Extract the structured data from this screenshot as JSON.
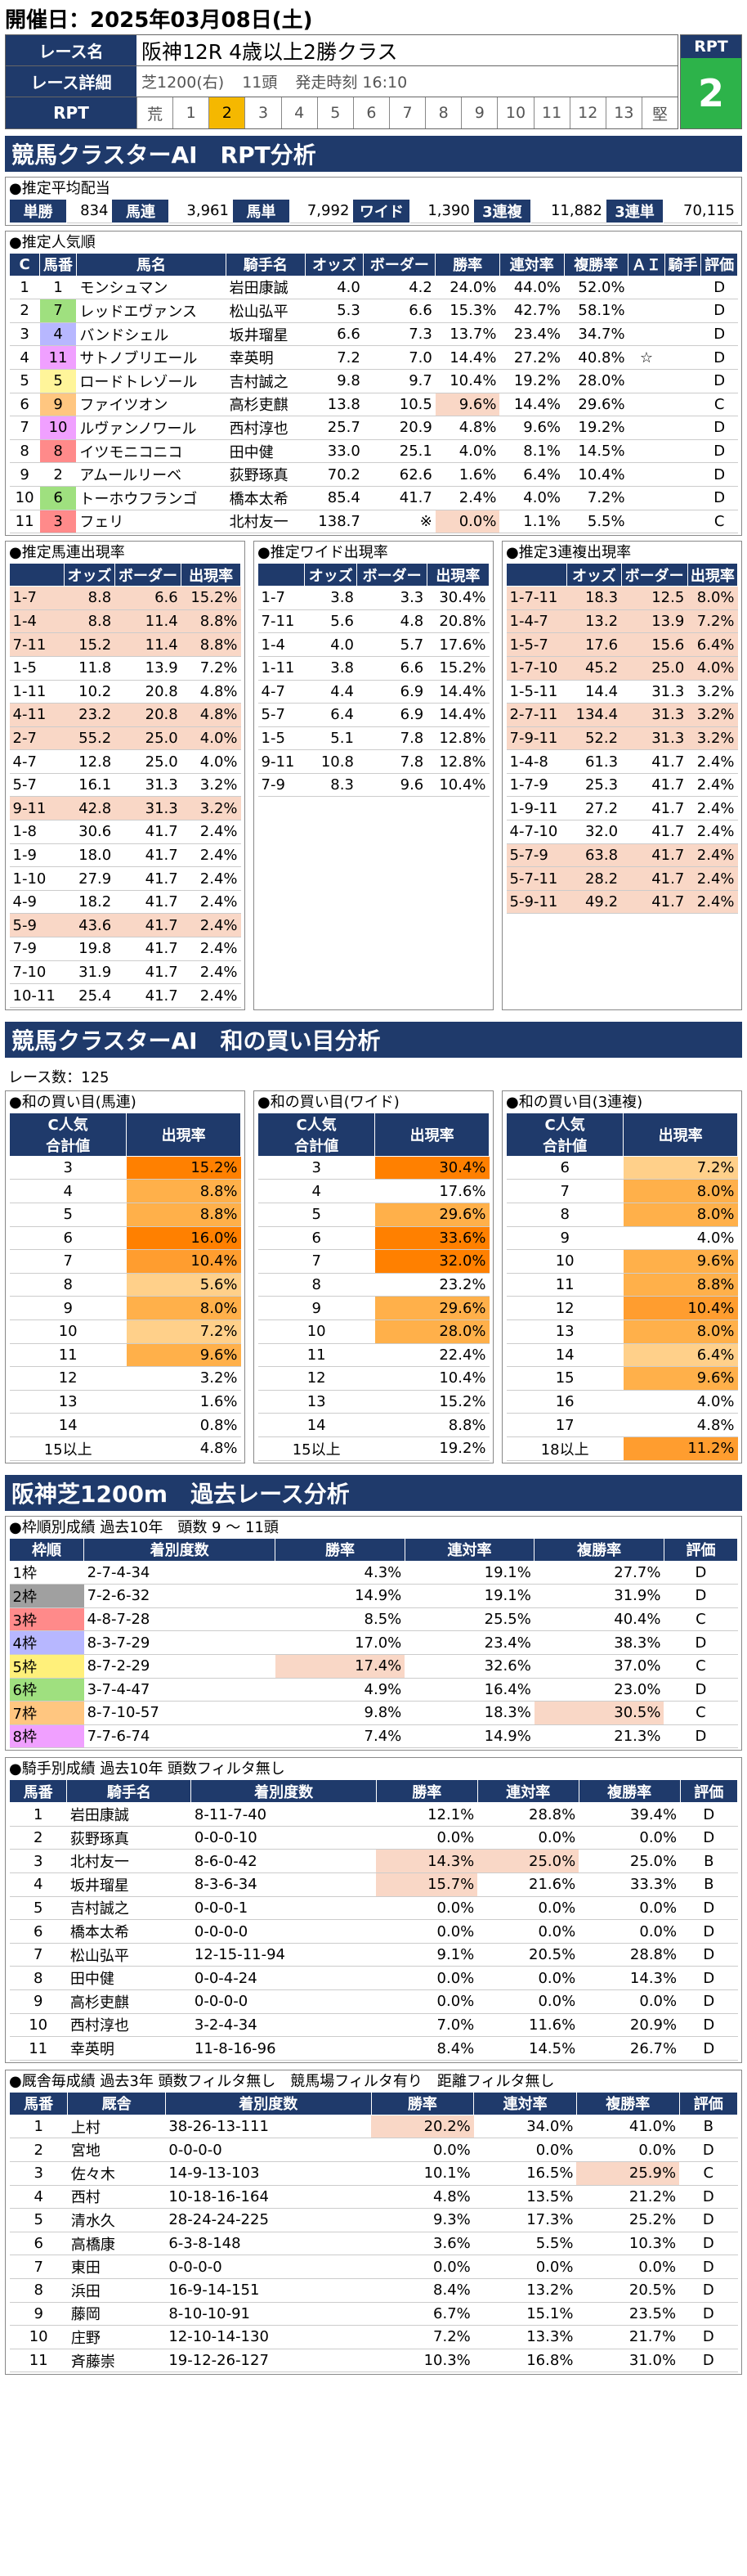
{
  "header": {
    "date": "開催日：2025年03月08日(土)"
  },
  "race": {
    "name_label": "レース名",
    "name": "阪神12R 4歳以上2勝クラス",
    "detail_label": "レース詳細",
    "course": "芝1200(右)",
    "count": "11頭",
    "start": "発走時刻 16:10",
    "rpt_label": "RPT",
    "scale": [
      "荒",
      "1",
      "2",
      "3",
      "4",
      "5",
      "6",
      "7",
      "8",
      "9",
      "10",
      "11",
      "12",
      "13",
      "堅"
    ],
    "rpt_header": "RPT",
    "rpt_value": "2"
  },
  "sec1": {
    "title": "競馬クラスターAI　RPT分析"
  },
  "payout": {
    "title": "●推定平均配当",
    "items": [
      {
        "k": "単勝",
        "v": "834"
      },
      {
        "k": "馬連",
        "v": "3,961"
      },
      {
        "k": "馬単",
        "v": "7,992"
      },
      {
        "k": "ワイド",
        "v": "1,390"
      },
      {
        "k": "3連複",
        "v": "11,882"
      },
      {
        "k": "3連単",
        "v": "70,115"
      }
    ]
  },
  "popular": {
    "title": "●推定人気順",
    "headers": [
      "C",
      "馬番",
      "馬名",
      "騎手名",
      "オッズ",
      "ボーダー",
      "勝率",
      "連対率",
      "複勝率",
      "ＡＩ",
      "騎手",
      "評価"
    ],
    "rows": [
      [
        "1",
        "1",
        "モンシュマン",
        "岩田康誠",
        "4.0",
        "4.2",
        "24.0%",
        "44.0%",
        "52.0%",
        "",
        "",
        "D"
      ],
      [
        "2",
        "7",
        "レッドエヴァンス",
        "松山弘平",
        "5.3",
        "6.6",
        "15.3%",
        "42.7%",
        "58.1%",
        "",
        "",
        "D"
      ],
      [
        "3",
        "4",
        "バンドシェル",
        "坂井瑠星",
        "6.6",
        "7.3",
        "13.7%",
        "23.4%",
        "34.7%",
        "",
        "",
        "D"
      ],
      [
        "4",
        "11",
        "サトノブリエール",
        "幸英明",
        "7.2",
        "7.0",
        "14.4%",
        "27.2%",
        "40.8%",
        "☆",
        "",
        "D"
      ],
      [
        "5",
        "5",
        "ロードトレゾール",
        "吉村誠之",
        "9.8",
        "9.7",
        "10.4%",
        "19.2%",
        "28.0%",
        "",
        "",
        "D"
      ],
      [
        "6",
        "9",
        "ファイツオン",
        "高杉吏麒",
        "13.8",
        "10.5",
        "9.6%",
        "14.4%",
        "29.6%",
        "",
        "",
        "C"
      ],
      [
        "7",
        "10",
        "ルヴァンノワール",
        "西村淳也",
        "25.7",
        "20.9",
        "4.8%",
        "9.6%",
        "19.2%",
        "",
        "",
        "D"
      ],
      [
        "8",
        "8",
        "イツモニコニコ",
        "田中健",
        "33.0",
        "25.1",
        "4.0%",
        "8.1%",
        "14.5%",
        "",
        "",
        "D"
      ],
      [
        "9",
        "2",
        "アムールリーベ",
        "荻野琢真",
        "70.2",
        "62.6",
        "1.6%",
        "6.4%",
        "10.4%",
        "",
        "",
        "D"
      ],
      [
        "10",
        "6",
        "トーホウフランゴ",
        "橋本太希",
        "85.4",
        "41.7",
        "2.4%",
        "4.0%",
        "7.2%",
        "",
        "",
        "D"
      ],
      [
        "11",
        "3",
        "フェリ",
        "北村友一",
        "138.7",
        "※",
        "0.0%",
        "1.1%",
        "5.5%",
        "",
        "",
        "C"
      ]
    ]
  },
  "umaren": {
    "title": "●推定馬連出現率",
    "headers": [
      "",
      "オッズ",
      "ボーダー",
      "出現率"
    ],
    "rows": [
      [
        "1-7",
        "8.8",
        "6.6",
        "15.2%"
      ],
      [
        "1-4",
        "8.8",
        "11.4",
        "8.8%"
      ],
      [
        "7-11",
        "15.2",
        "11.4",
        "8.8%"
      ],
      [
        "1-5",
        "11.8",
        "13.9",
        "7.2%"
      ],
      [
        "1-11",
        "10.2",
        "20.8",
        "4.8%"
      ],
      [
        "4-11",
        "23.2",
        "20.8",
        "4.8%"
      ],
      [
        "2-7",
        "55.2",
        "25.0",
        "4.0%"
      ],
      [
        "4-7",
        "12.8",
        "25.0",
        "4.0%"
      ],
      [
        "5-7",
        "16.1",
        "31.3",
        "3.2%"
      ],
      [
        "9-11",
        "42.8",
        "31.3",
        "3.2%"
      ],
      [
        "1-8",
        "30.6",
        "41.7",
        "2.4%"
      ],
      [
        "1-9",
        "18.0",
        "41.7",
        "2.4%"
      ],
      [
        "1-10",
        "27.9",
        "41.7",
        "2.4%"
      ],
      [
        "4-9",
        "18.2",
        "41.7",
        "2.4%"
      ],
      [
        "5-9",
        "43.6",
        "41.7",
        "2.4%"
      ],
      [
        "7-9",
        "19.8",
        "41.7",
        "2.4%"
      ],
      [
        "7-10",
        "31.9",
        "41.7",
        "2.4%"
      ],
      [
        "10-11",
        "25.4",
        "41.7",
        "2.4%"
      ]
    ]
  },
  "wide": {
    "title": "●推定ワイド出現率",
    "headers": [
      "",
      "オッズ",
      "ボーダー",
      "出現率"
    ],
    "rows": [
      [
        "1-7",
        "3.8",
        "3.3",
        "30.4%"
      ],
      [
        "7-11",
        "5.6",
        "4.8",
        "20.8%"
      ],
      [
        "1-4",
        "4.0",
        "5.7",
        "17.6%"
      ],
      [
        "1-11",
        "3.8",
        "6.6",
        "15.2%"
      ],
      [
        "4-7",
        "4.4",
        "6.9",
        "14.4%"
      ],
      [
        "5-7",
        "6.4",
        "6.9",
        "14.4%"
      ],
      [
        "1-5",
        "5.1",
        "7.8",
        "12.8%"
      ],
      [
        "9-11",
        "10.8",
        "7.8",
        "12.8%"
      ],
      [
        "7-9",
        "8.3",
        "9.6",
        "10.4%"
      ]
    ]
  },
  "sanrenpuku": {
    "title": "●推定3連複出現率",
    "headers": [
      "",
      "オッズ",
      "ボーダー",
      "出現率"
    ],
    "rows": [
      [
        "1-7-11",
        "18.3",
        "12.5",
        "8.0%"
      ],
      [
        "1-4-7",
        "13.2",
        "13.9",
        "7.2%"
      ],
      [
        "1-5-7",
        "17.6",
        "15.6",
        "6.4%"
      ],
      [
        "1-7-10",
        "45.2",
        "25.0",
        "4.0%"
      ],
      [
        "1-5-11",
        "14.4",
        "31.3",
        "3.2%"
      ],
      [
        "2-7-11",
        "134.4",
        "31.3",
        "3.2%"
      ],
      [
        "7-9-11",
        "52.2",
        "31.3",
        "3.2%"
      ],
      [
        "1-4-8",
        "61.3",
        "41.7",
        "2.4%"
      ],
      [
        "1-7-9",
        "25.3",
        "41.7",
        "2.4%"
      ],
      [
        "1-9-11",
        "27.2",
        "41.7",
        "2.4%"
      ],
      [
        "4-7-10",
        "32.0",
        "41.7",
        "2.4%"
      ],
      [
        "5-7-9",
        "63.8",
        "41.7",
        "2.4%"
      ],
      [
        "5-7-11",
        "28.2",
        "41.7",
        "2.4%"
      ],
      [
        "5-9-11",
        "49.2",
        "41.7",
        "2.4%"
      ]
    ]
  },
  "sec2": {
    "title": "競馬クラスターAI　和の買い目分析",
    "races": "レース数：125"
  },
  "wa_umaren": {
    "title": "●和の買い目(馬連)",
    "h1": "C人気\n合計値",
    "h2": "出現率",
    "rows": [
      [
        "3",
        "15.2%"
      ],
      [
        "4",
        "8.8%"
      ],
      [
        "5",
        "8.8%"
      ],
      [
        "6",
        "16.0%"
      ],
      [
        "7",
        "10.4%"
      ],
      [
        "8",
        "5.6%"
      ],
      [
        "9",
        "8.0%"
      ],
      [
        "10",
        "7.2%"
      ],
      [
        "11",
        "9.6%"
      ],
      [
        "12",
        "3.2%"
      ],
      [
        "13",
        "1.6%"
      ],
      [
        "14",
        "0.8%"
      ],
      [
        "15以上",
        "4.8%"
      ]
    ]
  },
  "wa_wide": {
    "title": "●和の買い目(ワイド)",
    "h1": "C人気\n合計値",
    "h2": "出現率",
    "rows": [
      [
        "3",
        "30.4%"
      ],
      [
        "4",
        "17.6%"
      ],
      [
        "5",
        "29.6%"
      ],
      [
        "6",
        "33.6%"
      ],
      [
        "7",
        "32.0%"
      ],
      [
        "8",
        "23.2%"
      ],
      [
        "9",
        "29.6%"
      ],
      [
        "10",
        "28.0%"
      ],
      [
        "11",
        "22.4%"
      ],
      [
        "12",
        "10.4%"
      ],
      [
        "13",
        "15.2%"
      ],
      [
        "14",
        "8.8%"
      ],
      [
        "15以上",
        "19.2%"
      ]
    ]
  },
  "wa_3f": {
    "title": "●和の買い目(3連複)",
    "h1": "C人気\n合計値",
    "h2": "出現率",
    "rows": [
      [
        "6",
        "7.2%"
      ],
      [
        "7",
        "8.0%"
      ],
      [
        "8",
        "8.0%"
      ],
      [
        "9",
        "4.0%"
      ],
      [
        "10",
        "9.6%"
      ],
      [
        "11",
        "8.8%"
      ],
      [
        "12",
        "10.4%"
      ],
      [
        "13",
        "8.0%"
      ],
      [
        "14",
        "6.4%"
      ],
      [
        "15",
        "9.6%"
      ],
      [
        "16",
        "4.0%"
      ],
      [
        "17",
        "4.8%"
      ],
      [
        "18以上",
        "11.2%"
      ]
    ]
  },
  "sec3": {
    "title": "阪神芝1200m　過去レース分析"
  },
  "frames": {
    "title": "●枠順別成績 過去10年　頭数 9 ～ 11頭",
    "headers": [
      "枠順",
      "着別度数",
      "勝率",
      "連対率",
      "複勝率",
      "評価"
    ],
    "rows": [
      [
        "1枠",
        "2-7-4-34",
        "4.3%",
        "19.1%",
        "27.7%",
        "D"
      ],
      [
        "2枠",
        "7-2-6-32",
        "14.9%",
        "19.1%",
        "31.9%",
        "D"
      ],
      [
        "3枠",
        "4-8-7-28",
        "8.5%",
        "25.5%",
        "40.4%",
        "C"
      ],
      [
        "4枠",
        "8-3-7-29",
        "17.0%",
        "23.4%",
        "38.3%",
        "D"
      ],
      [
        "5枠",
        "8-7-2-29",
        "17.4%",
        "32.6%",
        "37.0%",
        "C"
      ],
      [
        "6枠",
        "3-7-4-47",
        "4.9%",
        "16.4%",
        "23.0%",
        "D"
      ],
      [
        "7枠",
        "8-7-10-57",
        "9.8%",
        "18.3%",
        "30.5%",
        "C"
      ],
      [
        "8枠",
        "7-7-6-74",
        "7.4%",
        "14.9%",
        "21.3%",
        "D"
      ]
    ]
  },
  "jockeys": {
    "title": "●騎手別成績 過去10年 頭数フィルタ無し",
    "headers": [
      "馬番",
      "騎手名",
      "着別度数",
      "勝率",
      "連対率",
      "複勝率",
      "評価"
    ],
    "rows": [
      [
        "1",
        "岩田康誠",
        "8-11-7-40",
        "12.1%",
        "28.8%",
        "39.4%",
        "D"
      ],
      [
        "2",
        "荻野琢真",
        "0-0-0-10",
        "0.0%",
        "0.0%",
        "0.0%",
        "D"
      ],
      [
        "3",
        "北村友一",
        "8-6-0-42",
        "14.3%",
        "25.0%",
        "25.0%",
        "B"
      ],
      [
        "4",
        "坂井瑠星",
        "8-3-6-34",
        "15.7%",
        "21.6%",
        "33.3%",
        "B"
      ],
      [
        "5",
        "吉村誠之",
        "0-0-0-1",
        "0.0%",
        "0.0%",
        "0.0%",
        "D"
      ],
      [
        "6",
        "橋本太希",
        "0-0-0-0",
        "0.0%",
        "0.0%",
        "0.0%",
        "D"
      ],
      [
        "7",
        "松山弘平",
        "12-15-11-94",
        "9.1%",
        "20.5%",
        "28.8%",
        "D"
      ],
      [
        "8",
        "田中健",
        "0-0-4-24",
        "0.0%",
        "0.0%",
        "14.3%",
        "D"
      ],
      [
        "9",
        "高杉吏麒",
        "0-0-0-0",
        "0.0%",
        "0.0%",
        "0.0%",
        "D"
      ],
      [
        "10",
        "西村淳也",
        "3-2-4-34",
        "7.0%",
        "11.6%",
        "20.9%",
        "D"
      ],
      [
        "11",
        "幸英明",
        "11-8-16-96",
        "8.4%",
        "14.5%",
        "26.7%",
        "D"
      ]
    ]
  },
  "trainers": {
    "title": "●厩舎毎成績 過去3年 頭数フィルタ無し　競馬場フィルタ有り　距離フィルタ無し",
    "headers": [
      "馬番",
      "厩舎",
      "着別度数",
      "勝率",
      "連対率",
      "複勝率",
      "評価"
    ],
    "rows": [
      [
        "1",
        "上村",
        "38-26-13-111",
        "20.2%",
        "34.0%",
        "41.0%",
        "B"
      ],
      [
        "2",
        "宮地",
        "0-0-0-0",
        "0.0%",
        "0.0%",
        "0.0%",
        "D"
      ],
      [
        "3",
        "佐々木",
        "14-9-13-103",
        "10.1%",
        "16.5%",
        "25.9%",
        "C"
      ],
      [
        "4",
        "西村",
        "10-18-16-164",
        "4.8%",
        "13.5%",
        "21.2%",
        "D"
      ],
      [
        "5",
        "清水久",
        "28-24-24-225",
        "9.3%",
        "17.3%",
        "25.2%",
        "D"
      ],
      [
        "6",
        "高橋康",
        "6-3-8-148",
        "3.6%",
        "5.5%",
        "10.3%",
        "D"
      ],
      [
        "7",
        "東田",
        "0-0-0-0",
        "0.0%",
        "0.0%",
        "0.0%",
        "D"
      ],
      [
        "8",
        "浜田",
        "16-9-14-151",
        "8.4%",
        "13.2%",
        "20.5%",
        "D"
      ],
      [
        "9",
        "藤岡",
        "8-10-10-91",
        "6.7%",
        "15.1%",
        "23.5%",
        "D"
      ],
      [
        "10",
        "庄野",
        "12-10-14-130",
        "7.2%",
        "13.3%",
        "21.7%",
        "D"
      ],
      [
        "11",
        "斉藤崇",
        "19-12-26-127",
        "10.3%",
        "16.8%",
        "31.0%",
        "D"
      ]
    ]
  }
}
